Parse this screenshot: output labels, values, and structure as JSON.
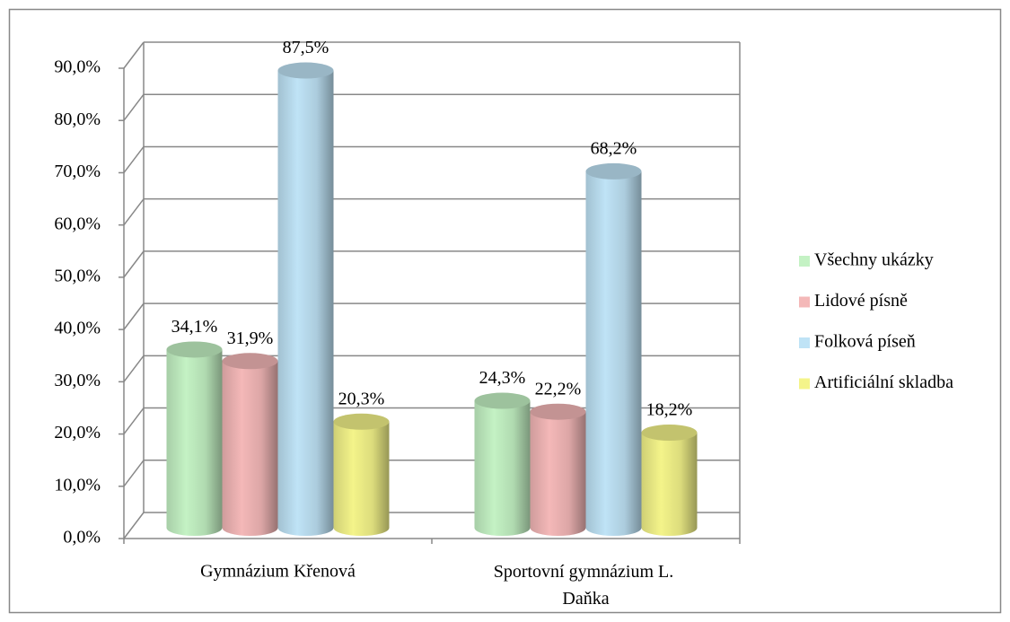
{
  "chart_data": {
    "type": "bar3d",
    "categories": [
      "Gymnázium Křenová",
      "Sportovní gymnázium L. Daňka"
    ],
    "series": [
      {
        "name": "Všechny ukázky",
        "color": "#c4f2c4",
        "values": [
          34.1,
          24.3
        ],
        "value_labels": [
          "34,1%",
          "24,3%"
        ]
      },
      {
        "name": "Lidové písně",
        "color": "#f4b8b8",
        "values": [
          31.9,
          22.2
        ],
        "value_labels": [
          "31,9%",
          "22,2%"
        ]
      },
      {
        "name": "Folková píseň",
        "color": "#bfe3f6",
        "values": [
          87.5,
          68.2
        ],
        "value_labels": [
          "87,5%",
          "68,2%"
        ]
      },
      {
        "name": "Artificiální skladba",
        "color": "#f4f48a",
        "values": [
          20.3,
          18.2
        ],
        "value_labels": [
          "20,3%",
          "18,2%"
        ]
      }
    ],
    "ylim": [
      0,
      90
    ],
    "yticks": [
      {
        "value": 0,
        "label": "0,0%"
      },
      {
        "value": 10,
        "label": "10,0%"
      },
      {
        "value": 20,
        "label": "20,0%"
      },
      {
        "value": 30,
        "label": "30,0%"
      },
      {
        "value": 40,
        "label": "40,0%"
      },
      {
        "value": 50,
        "label": "50,0%"
      },
      {
        "value": 60,
        "label": "60,0%"
      },
      {
        "value": 70,
        "label": "70,0%"
      },
      {
        "value": 80,
        "label": "80,0%"
      },
      {
        "value": 90,
        "label": "90,0%"
      }
    ],
    "grid": true,
    "legend": "right"
  }
}
